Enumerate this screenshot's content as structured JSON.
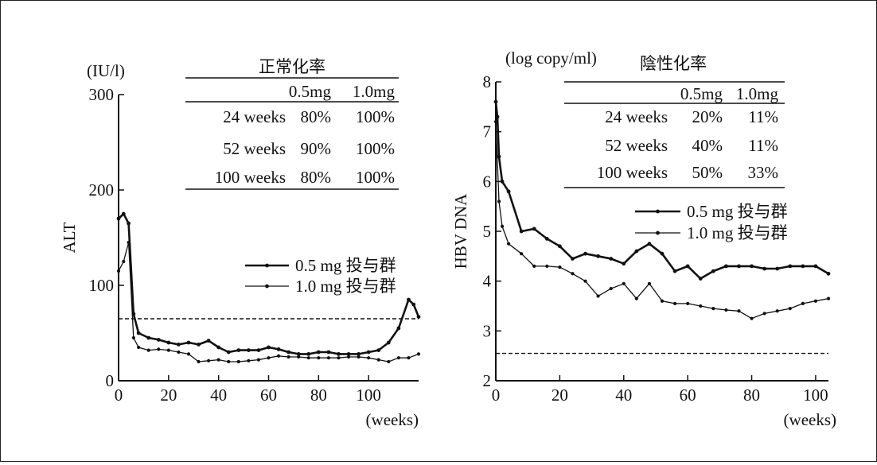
{
  "chart_data": [
    {
      "type": "line",
      "ylabel": "ALT",
      "yunit": "(IU/l)",
      "xunit": "(weeks)",
      "xlim": [
        0,
        120
      ],
      "ylim": [
        0,
        300
      ],
      "xticks": [
        0,
        20,
        40,
        60,
        80,
        100
      ],
      "yticks": [
        0,
        100,
        200,
        300
      ],
      "reference_line": 65,
      "series": [
        {
          "name": "0.5 mg 投与群",
          "style": "thick",
          "x": [
            0,
            2,
            4,
            6,
            8,
            12,
            16,
            20,
            24,
            28,
            32,
            36,
            40,
            44,
            48,
            52,
            56,
            60,
            64,
            68,
            72,
            76,
            80,
            84,
            88,
            92,
            96,
            100,
            104,
            108,
            112,
            116,
            118,
            120
          ],
          "y": [
            170,
            175,
            165,
            70,
            50,
            45,
            43,
            40,
            38,
            40,
            38,
            42,
            35,
            30,
            32,
            32,
            32,
            35,
            33,
            30,
            28,
            28,
            30,
            30,
            28,
            28,
            28,
            30,
            32,
            40,
            55,
            85,
            80,
            67
          ]
        },
        {
          "name": "1.0 mg 投与群",
          "style": "thin",
          "x": [
            0,
            2,
            4,
            6,
            8,
            12,
            16,
            20,
            24,
            28,
            32,
            36,
            40,
            44,
            48,
            52,
            56,
            60,
            64,
            68,
            72,
            76,
            80,
            84,
            88,
            92,
            96,
            100,
            104,
            108,
            112,
            116,
            120
          ],
          "y": [
            115,
            125,
            145,
            45,
            35,
            32,
            33,
            32,
            30,
            28,
            20,
            21,
            22,
            20,
            20,
            21,
            22,
            24,
            26,
            25,
            25,
            24,
            24,
            24,
            24,
            25,
            25,
            24,
            22,
            20,
            24,
            24,
            28
          ]
        }
      ],
      "table": {
        "title": "正常化率",
        "headers": [
          "0.5mg",
          "1.0mg"
        ],
        "rows": [
          {
            "label": "24 weeks",
            "a": "80%",
            "b": "100%"
          },
          {
            "label": "52 weeks",
            "a": "90%",
            "b": "100%"
          },
          {
            "label": "100 weeks",
            "a": "80%",
            "b": "100%"
          }
        ]
      },
      "legend_position": "right-middle"
    },
    {
      "type": "line",
      "ylabel": "HBV DNA",
      "yunit": "(log copy/ml)",
      "xunit": "(weeks)",
      "xlim": [
        0,
        104
      ],
      "ylim": [
        2,
        8
      ],
      "xticks": [
        0,
        20,
        40,
        60,
        80,
        100
      ],
      "yticks": [
        2,
        3,
        4,
        5,
        6,
        7,
        8
      ],
      "reference_line": 2.55,
      "series": [
        {
          "name": "0.5 mg 投与群",
          "style": "thick",
          "x": [
            0,
            0.5,
            1,
            2,
            4,
            8,
            12,
            16,
            20,
            24,
            28,
            32,
            36,
            40,
            44,
            48,
            52,
            56,
            60,
            64,
            68,
            72,
            76,
            80,
            84,
            88,
            92,
            96,
            100,
            104
          ],
          "y": [
            7.6,
            7.3,
            6.5,
            6.0,
            5.8,
            5.0,
            5.05,
            4.85,
            4.7,
            4.45,
            4.55,
            4.5,
            4.45,
            4.35,
            4.6,
            4.75,
            4.55,
            4.2,
            4.3,
            4.05,
            4.2,
            4.3,
            4.3,
            4.3,
            4.25,
            4.25,
            4.3,
            4.3,
            4.3,
            4.15
          ]
        },
        {
          "name": "1.0 mg 投与群",
          "style": "thin",
          "x": [
            0,
            1,
            2,
            4,
            8,
            12,
            16,
            20,
            24,
            28,
            32,
            36,
            40,
            44,
            48,
            52,
            56,
            60,
            64,
            68,
            72,
            76,
            80,
            84,
            88,
            92,
            96,
            100,
            104
          ],
          "y": [
            7.2,
            5.6,
            5.1,
            4.75,
            4.55,
            4.3,
            4.3,
            4.28,
            4.15,
            4.0,
            3.7,
            3.85,
            3.95,
            3.65,
            3.95,
            3.6,
            3.55,
            3.55,
            3.5,
            3.45,
            3.42,
            3.4,
            3.25,
            3.35,
            3.4,
            3.45,
            3.55,
            3.6,
            3.65
          ]
        }
      ],
      "table": {
        "title": "陰性化率",
        "headers": [
          "0.5mg",
          "1.0mg"
        ],
        "rows": [
          {
            "label": "24 weeks",
            "a": "20%",
            "b": "11%"
          },
          {
            "label": "52 weeks",
            "a": "40%",
            "b": "11%"
          },
          {
            "label": "100 weeks",
            "a": "50%",
            "b": "33%"
          }
        ]
      },
      "legend_position": "right-top"
    }
  ]
}
